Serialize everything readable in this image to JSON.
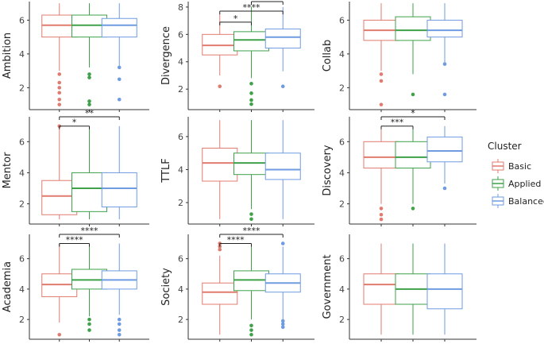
{
  "legend": {
    "title": "Cluster",
    "entries": [
      {
        "name": "Basic",
        "color": "#E07B6F"
      },
      {
        "name": "Applied",
        "color": "#3FA14A"
      },
      {
        "name": "Balanced",
        "color": "#6F9BE0"
      }
    ]
  },
  "chart_data": [
    {
      "type": "box",
      "ylabel": "Ambition",
      "yticks": [
        2,
        4,
        6
      ],
      "ylim": [
        0.7,
        7.1
      ],
      "categories": [
        "Basic",
        "Applied",
        "Balanced"
      ],
      "series": [
        {
          "name": "Basic",
          "min": 3.0,
          "q1": 5.0,
          "median": 5.7,
          "q3": 6.3,
          "max": 7.0,
          "outliers": [
            2.8,
            2.3,
            2.0,
            1.7,
            1.3,
            1.0
          ]
        },
        {
          "name": "Applied",
          "min": 3.2,
          "q1": 5.0,
          "median": 5.7,
          "q3": 6.3,
          "max": 7.0,
          "outliers": [
            2.8,
            2.6,
            1.2,
            1.0
          ]
        },
        {
          "name": "Balanced",
          "min": 3.3,
          "q1": 5.0,
          "median": 5.7,
          "q3": 6.1,
          "max": 7.0,
          "outliers": [
            3.2,
            2.5,
            1.3
          ]
        }
      ],
      "significance": []
    },
    {
      "type": "box",
      "ylabel": "Divergence",
      "yticks": [
        2,
        4,
        6,
        8
      ],
      "ylim": [
        0.5,
        8.4
      ],
      "categories": [
        "Basic",
        "Applied",
        "Balanced"
      ],
      "series": [
        {
          "name": "Basic",
          "min": 3.0,
          "q1": 4.5,
          "median": 5.2,
          "q3": 6.0,
          "max": 7.5,
          "outliers": [
            2.2
          ]
        },
        {
          "name": "Applied",
          "min": 2.8,
          "q1": 4.8,
          "median": 5.6,
          "q3": 6.2,
          "max": 8.0,
          "outliers": [
            2.4,
            1.7,
            1.2,
            0.9
          ]
        },
        {
          "name": "Balanced",
          "min": 3.3,
          "q1": 5.0,
          "median": 5.8,
          "q3": 6.4,
          "max": 8.0,
          "outliers": [
            2.2
          ]
        }
      ],
      "significance": [
        {
          "from": 0,
          "to": 1,
          "label": "*",
          "y": 6.9
        },
        {
          "from": 0,
          "to": 2,
          "label": "****",
          "y": 7.7
        },
        {
          "from": 1,
          "to": 2,
          "label": "**",
          "y": 8.4
        }
      ]
    },
    {
      "type": "box",
      "ylabel": "Collab",
      "yticks": [
        2,
        4,
        6
      ],
      "ylim": [
        0.7,
        7.1
      ],
      "categories": [
        "Basic",
        "Applied",
        "Balanced"
      ],
      "series": [
        {
          "name": "Basic",
          "min": 3.0,
          "q1": 4.8,
          "median": 5.4,
          "q3": 6.0,
          "max": 7.0,
          "outliers": [
            2.8,
            2.4,
            1.0
          ]
        },
        {
          "name": "Applied",
          "min": 2.8,
          "q1": 4.8,
          "median": 5.4,
          "q3": 6.2,
          "max": 7.0,
          "outliers": [
            1.6
          ]
        },
        {
          "name": "Balanced",
          "min": 3.3,
          "q1": 5.0,
          "median": 5.4,
          "q3": 6.0,
          "max": 7.0,
          "outliers": [
            3.4,
            1.6
          ]
        }
      ],
      "significance": []
    },
    {
      "type": "box",
      "ylabel": "Mentor",
      "yticks": [
        2,
        4,
        6
      ],
      "ylim": [
        0.7,
        7.6
      ],
      "categories": [
        "Basic",
        "Applied",
        "Balanced"
      ],
      "series": [
        {
          "name": "Basic",
          "min": 1.0,
          "q1": 1.3,
          "median": 2.5,
          "q3": 3.5,
          "max": 7.0,
          "outliers": [
            7.0
          ]
        },
        {
          "name": "Applied",
          "min": 1.0,
          "q1": 1.5,
          "median": 3.0,
          "q3": 4.0,
          "max": 7.0,
          "outliers": []
        },
        {
          "name": "Balanced",
          "min": 1.0,
          "q1": 1.8,
          "median": 3.0,
          "q3": 4.0,
          "max": 7.0,
          "outliers": []
        }
      ],
      "significance": [
        {
          "from": 0,
          "to": 1,
          "label": "*",
          "y": 7.0
        },
        {
          "from": 0,
          "to": 2,
          "label": "**",
          "y": 7.6
        }
      ]
    },
    {
      "type": "box",
      "ylabel": "TTLF",
      "yticks": [
        2,
        4,
        6
      ],
      "ylim": [
        0.7,
        7.2
      ],
      "categories": [
        "Basic",
        "Applied",
        "Balanced"
      ],
      "series": [
        {
          "name": "Basic",
          "min": 1.0,
          "q1": 3.3,
          "median": 4.4,
          "q3": 5.3,
          "max": 7.0,
          "outliers": []
        },
        {
          "name": "Applied",
          "min": 1.6,
          "q1": 3.7,
          "median": 4.4,
          "q3": 5.0,
          "max": 7.0,
          "outliers": [
            1.3,
            1.0
          ]
        },
        {
          "name": "Balanced",
          "min": 1.0,
          "q1": 3.4,
          "median": 4.0,
          "q3": 5.0,
          "max": 7.0,
          "outliers": []
        }
      ],
      "significance": []
    },
    {
      "type": "box",
      "ylabel": "Discovery",
      "yticks": [
        2,
        4,
        6
      ],
      "ylim": [
        0.7,
        7.6
      ],
      "categories": [
        "Basic",
        "Applied",
        "Balanced"
      ],
      "series": [
        {
          "name": "Basic",
          "min": 2.0,
          "q1": 4.3,
          "median": 5.0,
          "q3": 6.0,
          "max": 7.0,
          "outliers": [
            1.7,
            1.3,
            1.0
          ]
        },
        {
          "name": "Applied",
          "min": 2.0,
          "q1": 4.3,
          "median": 5.0,
          "q3": 6.0,
          "max": 7.0,
          "outliers": [
            1.7
          ]
        },
        {
          "name": "Balanced",
          "min": 3.3,
          "q1": 4.7,
          "median": 5.4,
          "q3": 6.3,
          "max": 7.0,
          "outliers": [
            3.0
          ]
        }
      ],
      "significance": [
        {
          "from": 0,
          "to": 1,
          "label": "***",
          "y": 7.0
        },
        {
          "from": 0,
          "to": 2,
          "label": "*",
          "y": 7.6
        }
      ]
    },
    {
      "type": "box",
      "ylabel": "Academia",
      "yticks": [
        2,
        4,
        6
      ],
      "ylim": [
        0.7,
        7.6
      ],
      "categories": [
        "Basic",
        "Applied",
        "Balanced"
      ],
      "series": [
        {
          "name": "Basic",
          "min": 1.8,
          "q1": 3.5,
          "median": 4.3,
          "q3": 5.0,
          "max": 7.0,
          "outliers": [
            1.0
          ]
        },
        {
          "name": "Applied",
          "min": 2.2,
          "q1": 4.0,
          "median": 4.6,
          "q3": 5.3,
          "max": 7.0,
          "outliers": [
            2.0,
            1.7,
            1.3
          ]
        },
        {
          "name": "Balanced",
          "min": 2.3,
          "q1": 4.0,
          "median": 4.6,
          "q3": 5.2,
          "max": 7.0,
          "outliers": [
            2.0,
            1.7,
            1.3,
            1.0
          ]
        }
      ],
      "significance": [
        {
          "from": 0,
          "to": 1,
          "label": "****",
          "y": 7.0
        },
        {
          "from": 0,
          "to": 2,
          "label": "****",
          "y": 7.6
        }
      ]
    },
    {
      "type": "box",
      "ylabel": "Society",
      "yticks": [
        2,
        4,
        6
      ],
      "ylim": [
        0.7,
        7.6
      ],
      "categories": [
        "Basic",
        "Applied",
        "Balanced"
      ],
      "series": [
        {
          "name": "Basic",
          "min": 1.0,
          "q1": 3.0,
          "median": 3.8,
          "q3": 4.4,
          "max": 6.2,
          "outliers": [
            7.0,
            6.8,
            6.6
          ]
        },
        {
          "name": "Applied",
          "min": 2.0,
          "q1": 3.9,
          "median": 4.6,
          "q3": 5.2,
          "max": 7.0,
          "outliers": [
            1.6,
            1.3,
            1.0
          ]
        },
        {
          "name": "Balanced",
          "min": 2.0,
          "q1": 3.8,
          "median": 4.4,
          "q3": 5.0,
          "max": 6.8,
          "outliers": [
            7.0,
            1.9,
            1.7,
            1.5
          ]
        }
      ],
      "significance": [
        {
          "from": 0,
          "to": 1,
          "label": "****",
          "y": 7.0
        },
        {
          "from": 0,
          "to": 2,
          "label": "****",
          "y": 7.6
        }
      ]
    },
    {
      "type": "box",
      "ylabel": "Government",
      "yticks": [
        2,
        4,
        6
      ],
      "ylim": [
        0.7,
        7.6
      ],
      "categories": [
        "Basic",
        "Applied",
        "Balanced"
      ],
      "series": [
        {
          "name": "Basic",
          "min": 1.0,
          "q1": 3.0,
          "median": 4.3,
          "q3": 5.0,
          "max": 7.0,
          "outliers": []
        },
        {
          "name": "Applied",
          "min": 1.0,
          "q1": 3.0,
          "median": 4.0,
          "q3": 5.0,
          "max": 7.0,
          "outliers": []
        },
        {
          "name": "Balanced",
          "min": 1.0,
          "q1": 2.7,
          "median": 4.0,
          "q3": 5.0,
          "max": 7.0,
          "outliers": []
        }
      ],
      "significance": []
    }
  ]
}
